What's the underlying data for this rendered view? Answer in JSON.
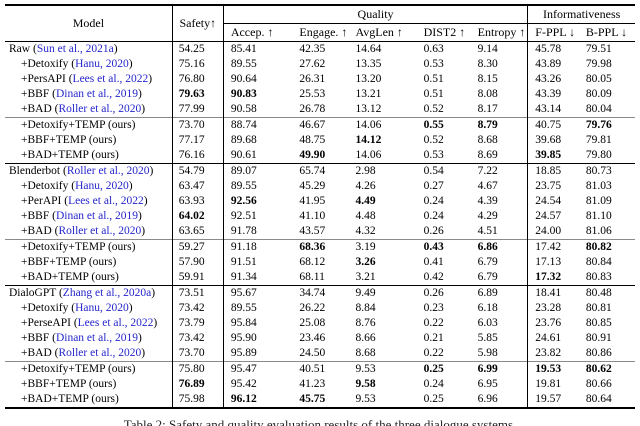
{
  "colors": {
    "citation_blue": "#2626cd"
  },
  "caption": {
    "text": "Table 2: Safety and quality evaluation results of the three dialogue systems."
  },
  "table": {
    "header": {
      "model": "Model",
      "safety": "Safety↑",
      "quality": "Quality",
      "informativeness": "Informativeness",
      "quality_cols": [
        "Accep. ↑",
        "Engage. ↑",
        "AvgLen ↑",
        "DIST2 ↑",
        "Entropy ↑"
      ],
      "info_cols": [
        "F-PPL ↓",
        "B-PPL ↓"
      ]
    },
    "col_keys": [
      "safety",
      "accep",
      "engage",
      "avglen",
      "dist2",
      "entropy",
      "fppl",
      "bppl"
    ],
    "groups": [
      {
        "base_rows": [
          {
            "name": "Raw",
            "cite": "Sun et al., 2021a",
            "indent": false,
            "values": [
              "54.25",
              "85.41",
              "42.35",
              "14.64",
              "0.63",
              "9.14",
              "45.78",
              "79.51"
            ],
            "bold": []
          },
          {
            "name": "+Detoxify",
            "cite": "Hanu, 2020",
            "indent": true,
            "values": [
              "75.16",
              "89.55",
              "27.62",
              "13.35",
              "0.53",
              "8.30",
              "43.89",
              "79.98"
            ],
            "bold": []
          },
          {
            "name": "+PersAPI",
            "cite": "Lees et al., 2022",
            "indent": true,
            "values": [
              "76.80",
              "90.64",
              "26.31",
              "13.20",
              "0.51",
              "8.15",
              "43.26",
              "80.05"
            ],
            "bold": []
          },
          {
            "name": "+BBF",
            "cite": "Dinan et al., 2019",
            "indent": true,
            "values": [
              "79.63",
              "90.83",
              "25.53",
              "13.21",
              "0.51",
              "8.08",
              "43.39",
              "80.09"
            ],
            "bold": [
              0,
              1
            ]
          },
          {
            "name": "+BAD",
            "cite": "Roller et al., 2020",
            "indent": true,
            "values": [
              "77.99",
              "90.58",
              "26.78",
              "13.12",
              "0.52",
              "8.17",
              "43.14",
              "80.04"
            ],
            "bold": []
          }
        ],
        "temp_rows": [
          {
            "name": "+Detoxify+TEMP",
            "suffix": "(ours)",
            "indent": true,
            "values": [
              "73.70",
              "88.74",
              "46.67",
              "14.06",
              "0.55",
              "8.79",
              "40.75",
              "79.76"
            ],
            "bold": [
              4,
              5,
              7
            ]
          },
          {
            "name": "+BBF+TEMP",
            "suffix": "(ours)",
            "indent": true,
            "values": [
              "77.17",
              "89.68",
              "48.75",
              "14.12",
              "0.52",
              "8.68",
              "39.68",
              "79.81"
            ],
            "bold": [
              3
            ]
          },
          {
            "name": "+BAD+TEMP",
            "suffix": "(ours)",
            "indent": true,
            "values": [
              "76.16",
              "90.61",
              "49.90",
              "14.06",
              "0.53",
              "8.69",
              "39.85",
              "79.80"
            ],
            "bold": [
              2,
              6
            ]
          }
        ]
      },
      {
        "base_rows": [
          {
            "name": "Blenderbot",
            "cite": "Roller et al., 2020",
            "indent": false,
            "values": [
              "54.79",
              "89.07",
              "65.74",
              "2.98",
              "0.54",
              "7.22",
              "18.85",
              "80.73"
            ],
            "bold": []
          },
          {
            "name": "+Detoxify",
            "cite": "Hanu, 2020",
            "indent": true,
            "values": [
              "63.47",
              "89.55",
              "45.29",
              "4.26",
              "0.27",
              "4.67",
              "23.75",
              "81.03"
            ],
            "bold": []
          },
          {
            "name": "+PerAPI",
            "cite": "Lees et al., 2022",
            "indent": true,
            "values": [
              "63.93",
              "92.56",
              "41.95",
              "4.49",
              "0.24",
              "4.39",
              "24.54",
              "81.09"
            ],
            "bold": [
              1,
              3
            ]
          },
          {
            "name": "+BBF",
            "cite": "Dinan et al., 2019",
            "indent": true,
            "values": [
              "64.02",
              "92.51",
              "41.10",
              "4.48",
              "0.24",
              "4.29",
              "24.57",
              "81.10"
            ],
            "bold": [
              0
            ]
          },
          {
            "name": "+BAD",
            "cite": "Roller et al., 2020",
            "indent": true,
            "values": [
              "63.65",
              "91.78",
              "43.57",
              "4.32",
              "0.26",
              "4.51",
              "24.00",
              "81.06"
            ],
            "bold": []
          }
        ],
        "temp_rows": [
          {
            "name": "+Detoxify+TEMP",
            "suffix": "(ours)",
            "indent": true,
            "values": [
              "59.27",
              "91.18",
              "68.36",
              "3.19",
              "0.43",
              "6.86",
              "17.42",
              "80.82"
            ],
            "bold": [
              2,
              4,
              5,
              7
            ]
          },
          {
            "name": "+BBF+TEMP",
            "suffix": "(ours)",
            "indent": true,
            "values": [
              "57.90",
              "91.51",
              "68.12",
              "3.26",
              "0.41",
              "6.79",
              "17.13",
              "80.84"
            ],
            "bold": [
              3
            ]
          },
          {
            "name": "+BAD+TEMP",
            "suffix": "(ours)",
            "indent": true,
            "values": [
              "59.91",
              "91.34",
              "68.11",
              "3.21",
              "0.42",
              "6.79",
              "17.32",
              "80.83"
            ],
            "bold": [
              6
            ]
          }
        ]
      },
      {
        "base_rows": [
          {
            "name": "DialoGPT",
            "cite": "Zhang et al., 2020a",
            "indent": false,
            "values": [
              "73.51",
              "95.67",
              "34.74",
              "9.49",
              "0.26",
              "6.89",
              "18.41",
              "80.48"
            ],
            "bold": []
          },
          {
            "name": "+Detoxify",
            "cite": "Hanu, 2020",
            "indent": true,
            "values": [
              "73.42",
              "89.55",
              "26.22",
              "8.84",
              "0.23",
              "6.18",
              "23.28",
              "80.81"
            ],
            "bold": []
          },
          {
            "name": "+PerseAPI",
            "cite": "Lees et al., 2022",
            "indent": true,
            "values": [
              "73.79",
              "95.84",
              "25.08",
              "8.76",
              "0.22",
              "6.03",
              "23.76",
              "80.85"
            ],
            "bold": []
          },
          {
            "name": "+BBF",
            "cite": "Dinan et al., 2019",
            "indent": true,
            "values": [
              "73.42",
              "95.90",
              "23.46",
              "8.66",
              "0.21",
              "5.85",
              "24.61",
              "80.91"
            ],
            "bold": []
          },
          {
            "name": "+BAD",
            "cite": "Roller et al., 2020",
            "indent": true,
            "values": [
              "73.70",
              "95.89",
              "24.50",
              "8.68",
              "0.22",
              "5.98",
              "23.82",
              "80.86"
            ],
            "bold": []
          }
        ],
        "temp_rows": [
          {
            "name": "+Detoxify+TEMP",
            "suffix": "(ours)",
            "indent": true,
            "values": [
              "75.80",
              "95.47",
              "40.51",
              "9.53",
              "0.25",
              "6.99",
              "19.53",
              "80.62"
            ],
            "bold": [
              4,
              5,
              6,
              7
            ]
          },
          {
            "name": "+BBF+TEMP",
            "suffix": "(ours)",
            "indent": true,
            "values": [
              "76.89",
              "95.42",
              "41.23",
              "9.58",
              "0.24",
              "6.95",
              "19.81",
              "80.66"
            ],
            "bold": [
              0,
              3
            ]
          },
          {
            "name": "+BAD+TEMP",
            "suffix": "(ours)",
            "indent": true,
            "values": [
              "75.98",
              "96.12",
              "45.75",
              "9.53",
              "0.25",
              "6.96",
              "19.57",
              "80.64"
            ],
            "bold": [
              1,
              2
            ]
          }
        ]
      }
    ]
  }
}
